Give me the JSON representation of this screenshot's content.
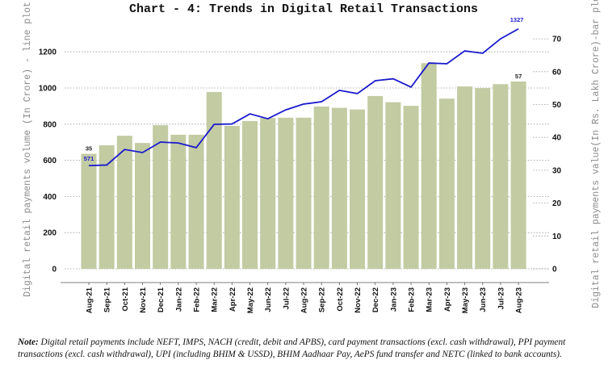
{
  "chart_data": {
    "type": "bar+line",
    "title": "Chart - 4: Trends in Digital Retail Transactions",
    "ylabel_left": "Digital retail payments volume (In Crore) - line plot",
    "ylabel_right": "Digital retail payments value(In Rs. Lakh Crore)-bar plot",
    "categories": [
      "Aug-21",
      "Sep-21",
      "Oct-21",
      "Nov-21",
      "Dec-21",
      "Jan-22",
      "Feb-22",
      "Mar-22",
      "Apr-22",
      "May-22",
      "Jun-22",
      "Jul-22",
      "Aug-22",
      "Sep-22",
      "Oct-22",
      "Nov-22",
      "Dec-22",
      "Jan-23",
      "Feb-23",
      "Mar-23",
      "Apr-23",
      "May-23",
      "Jun-23",
      "Jul-23",
      "Aug-23"
    ],
    "bar_series": {
      "axis": "right",
      "color": "#c2cba2",
      "values": [
        35,
        37.6,
        40.5,
        38.3,
        43.7,
        40.8,
        40.8,
        53.8,
        43.5,
        45,
        45.9,
        46,
        46,
        49.4,
        49,
        48.5,
        52.6,
        50.7,
        49.6,
        62.6,
        51.8,
        55.5,
        55,
        56.2,
        57
      ],
      "labels": {
        "first": "35",
        "last": "57"
      }
    },
    "line_series": {
      "axis": "left",
      "color": "#1a1acc",
      "values": [
        571,
        574,
        660,
        643,
        701,
        696,
        670,
        799,
        801,
        857,
        830,
        879,
        911,
        924,
        987,
        969,
        1040,
        1051,
        1005,
        1138,
        1134,
        1205,
        1192,
        1272,
        1327
      ],
      "labels": {
        "first": "571",
        "last": "1327"
      }
    },
    "left_axis": {
      "ticks": [
        "0",
        "200",
        "400",
        "600",
        "800",
        "1000",
        "1200"
      ],
      "range": [
        0,
        1200
      ]
    },
    "right_axis": {
      "ticks": [
        "0",
        "10",
        "20",
        "30",
        "40",
        "50",
        "60",
        "70"
      ],
      "range": [
        0,
        70
      ]
    },
    "grid": "horizontal dotted"
  },
  "note": {
    "label": "Note:",
    "text": " Digital retail payments include NEFT, IMPS, NACH (credit, debit and APBS), card payment transactions (excl. cash withdrawal), PPI payment transactions (excl. cash withdrawal), UPI (including BHIM & USSD), BHIM Aadhaar Pay, AePS fund transfer and NETC (linked to bank accounts)."
  }
}
